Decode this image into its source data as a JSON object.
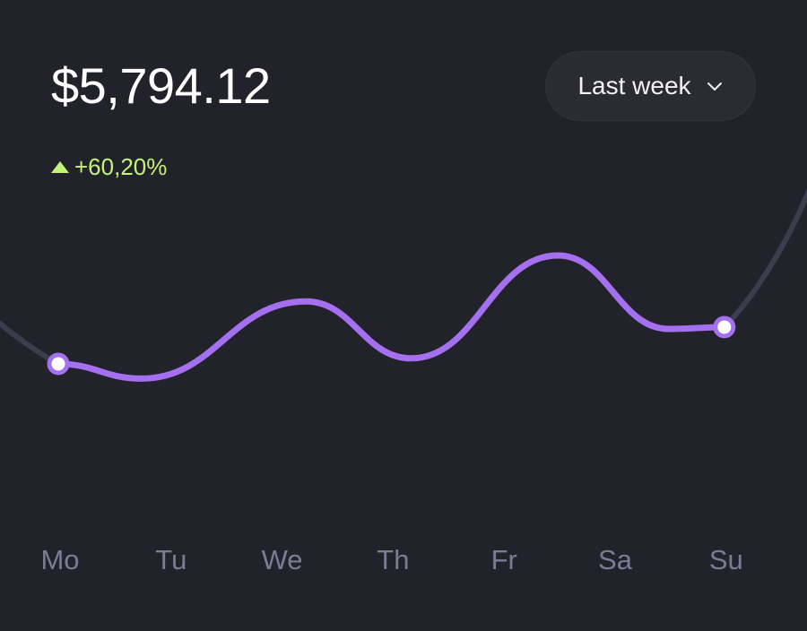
{
  "balance": "$5,794.12",
  "change": {
    "value": "+60,20%",
    "direction": "up",
    "color": "#c6f27a"
  },
  "period_selector": {
    "label": "Last week",
    "icon": "chevron-down-icon"
  },
  "colors": {
    "background": "#21222a",
    "accent": "#a470f0",
    "trend_line": "#3b3d4c",
    "axis_label": "#7a7d93"
  },
  "chart_data": {
    "type": "line",
    "categories": [
      "Mo",
      "Tu",
      "We",
      "Th",
      "Fr",
      "Sa",
      "Su"
    ],
    "series": [
      {
        "values": [
          0.41,
          0.33,
          0.75,
          0.44,
          1.0,
          0.6,
          0.61
        ]
      }
    ],
    "highlighted_points": [
      "Mo",
      "Su"
    ],
    "grid": false
  }
}
